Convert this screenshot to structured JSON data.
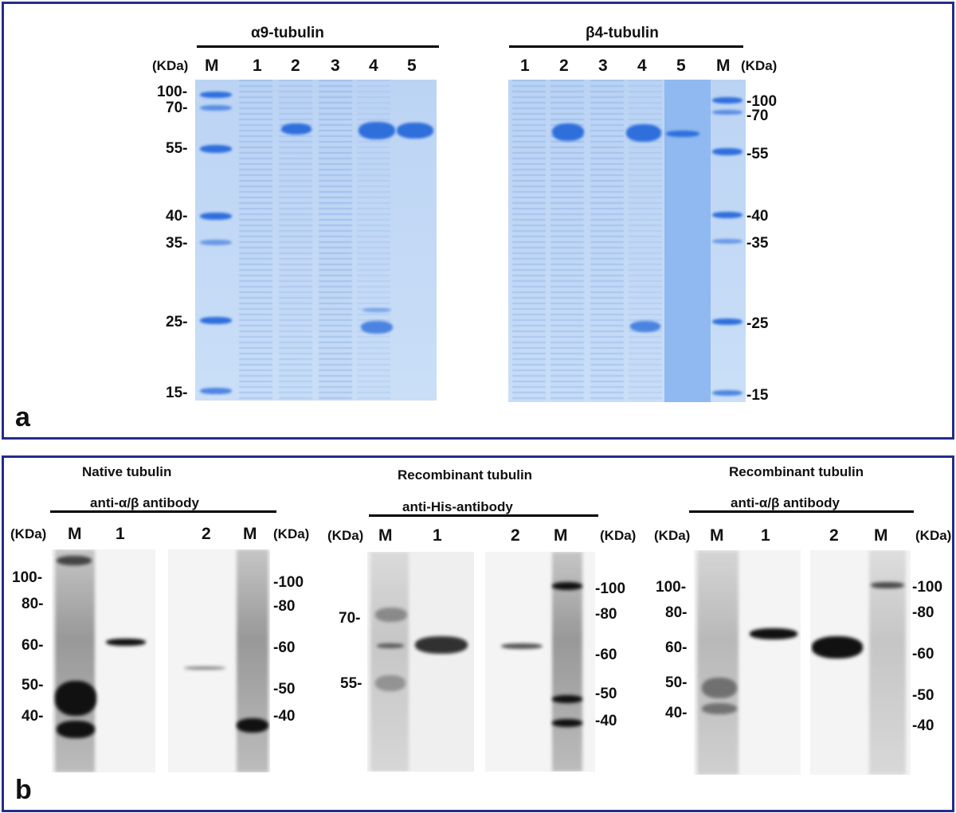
{
  "panel_a": {
    "letter": "a",
    "gel_left": {
      "title": "α9-tubulin",
      "kda_label": "(KDa)",
      "lanes": [
        "M",
        "1",
        "2",
        "3",
        "4",
        "5"
      ],
      "markers": [
        "100-",
        "70-",
        "55-",
        "40-",
        "35-",
        "25-",
        "15-"
      ]
    },
    "gel_right": {
      "title": "β4-tubulin",
      "kda_label": "(KDa)",
      "lanes": [
        "1",
        "2",
        "3",
        "4",
        "5",
        "M"
      ],
      "markers": [
        "-100",
        "-70",
        "-55",
        "-40",
        "-35",
        "-25",
        "-15"
      ]
    }
  },
  "panel_b": {
    "letter": "b",
    "blot1": {
      "title": "Native tubulin",
      "antibody": "anti-α/β antibody",
      "kda_left": "(KDa)",
      "kda_right": "(KDa)",
      "lanes": [
        "M",
        "1",
        "2",
        "M"
      ],
      "markers_left": [
        "100-",
        "80-",
        "60-",
        "50-",
        "40-"
      ],
      "markers_right": [
        "-100",
        "-80",
        "-60",
        "-50",
        "-40"
      ]
    },
    "blot2": {
      "title": "Recombinant tubulin",
      "antibody": "anti-His-antibody",
      "kda_left": "(KDa)",
      "kda_right": "(KDa)",
      "lanes": [
        "M",
        "1",
        "2",
        "M"
      ],
      "markers_left": [
        "70-",
        "55-"
      ],
      "markers_right": [
        "-100",
        "-80",
        "-60",
        "-50",
        "-40"
      ]
    },
    "blot3": {
      "title": "Recombinant tubulin",
      "antibody": "anti-α/β antibody",
      "kda_left": "(KDa)",
      "kda_right": "(KDa)",
      "lanes": [
        "M",
        "1",
        "2",
        "M"
      ],
      "markers_left": [
        "100-",
        "80-",
        "60-",
        "50-",
        "40-"
      ],
      "markers_right": [
        "-100",
        "-80",
        "-60",
        "-50",
        "-40"
      ]
    }
  },
  "colors": {
    "frame": "#232c8c",
    "coomassie_band": "#2f6fdc",
    "gel_bg": "#c4daf6"
  }
}
